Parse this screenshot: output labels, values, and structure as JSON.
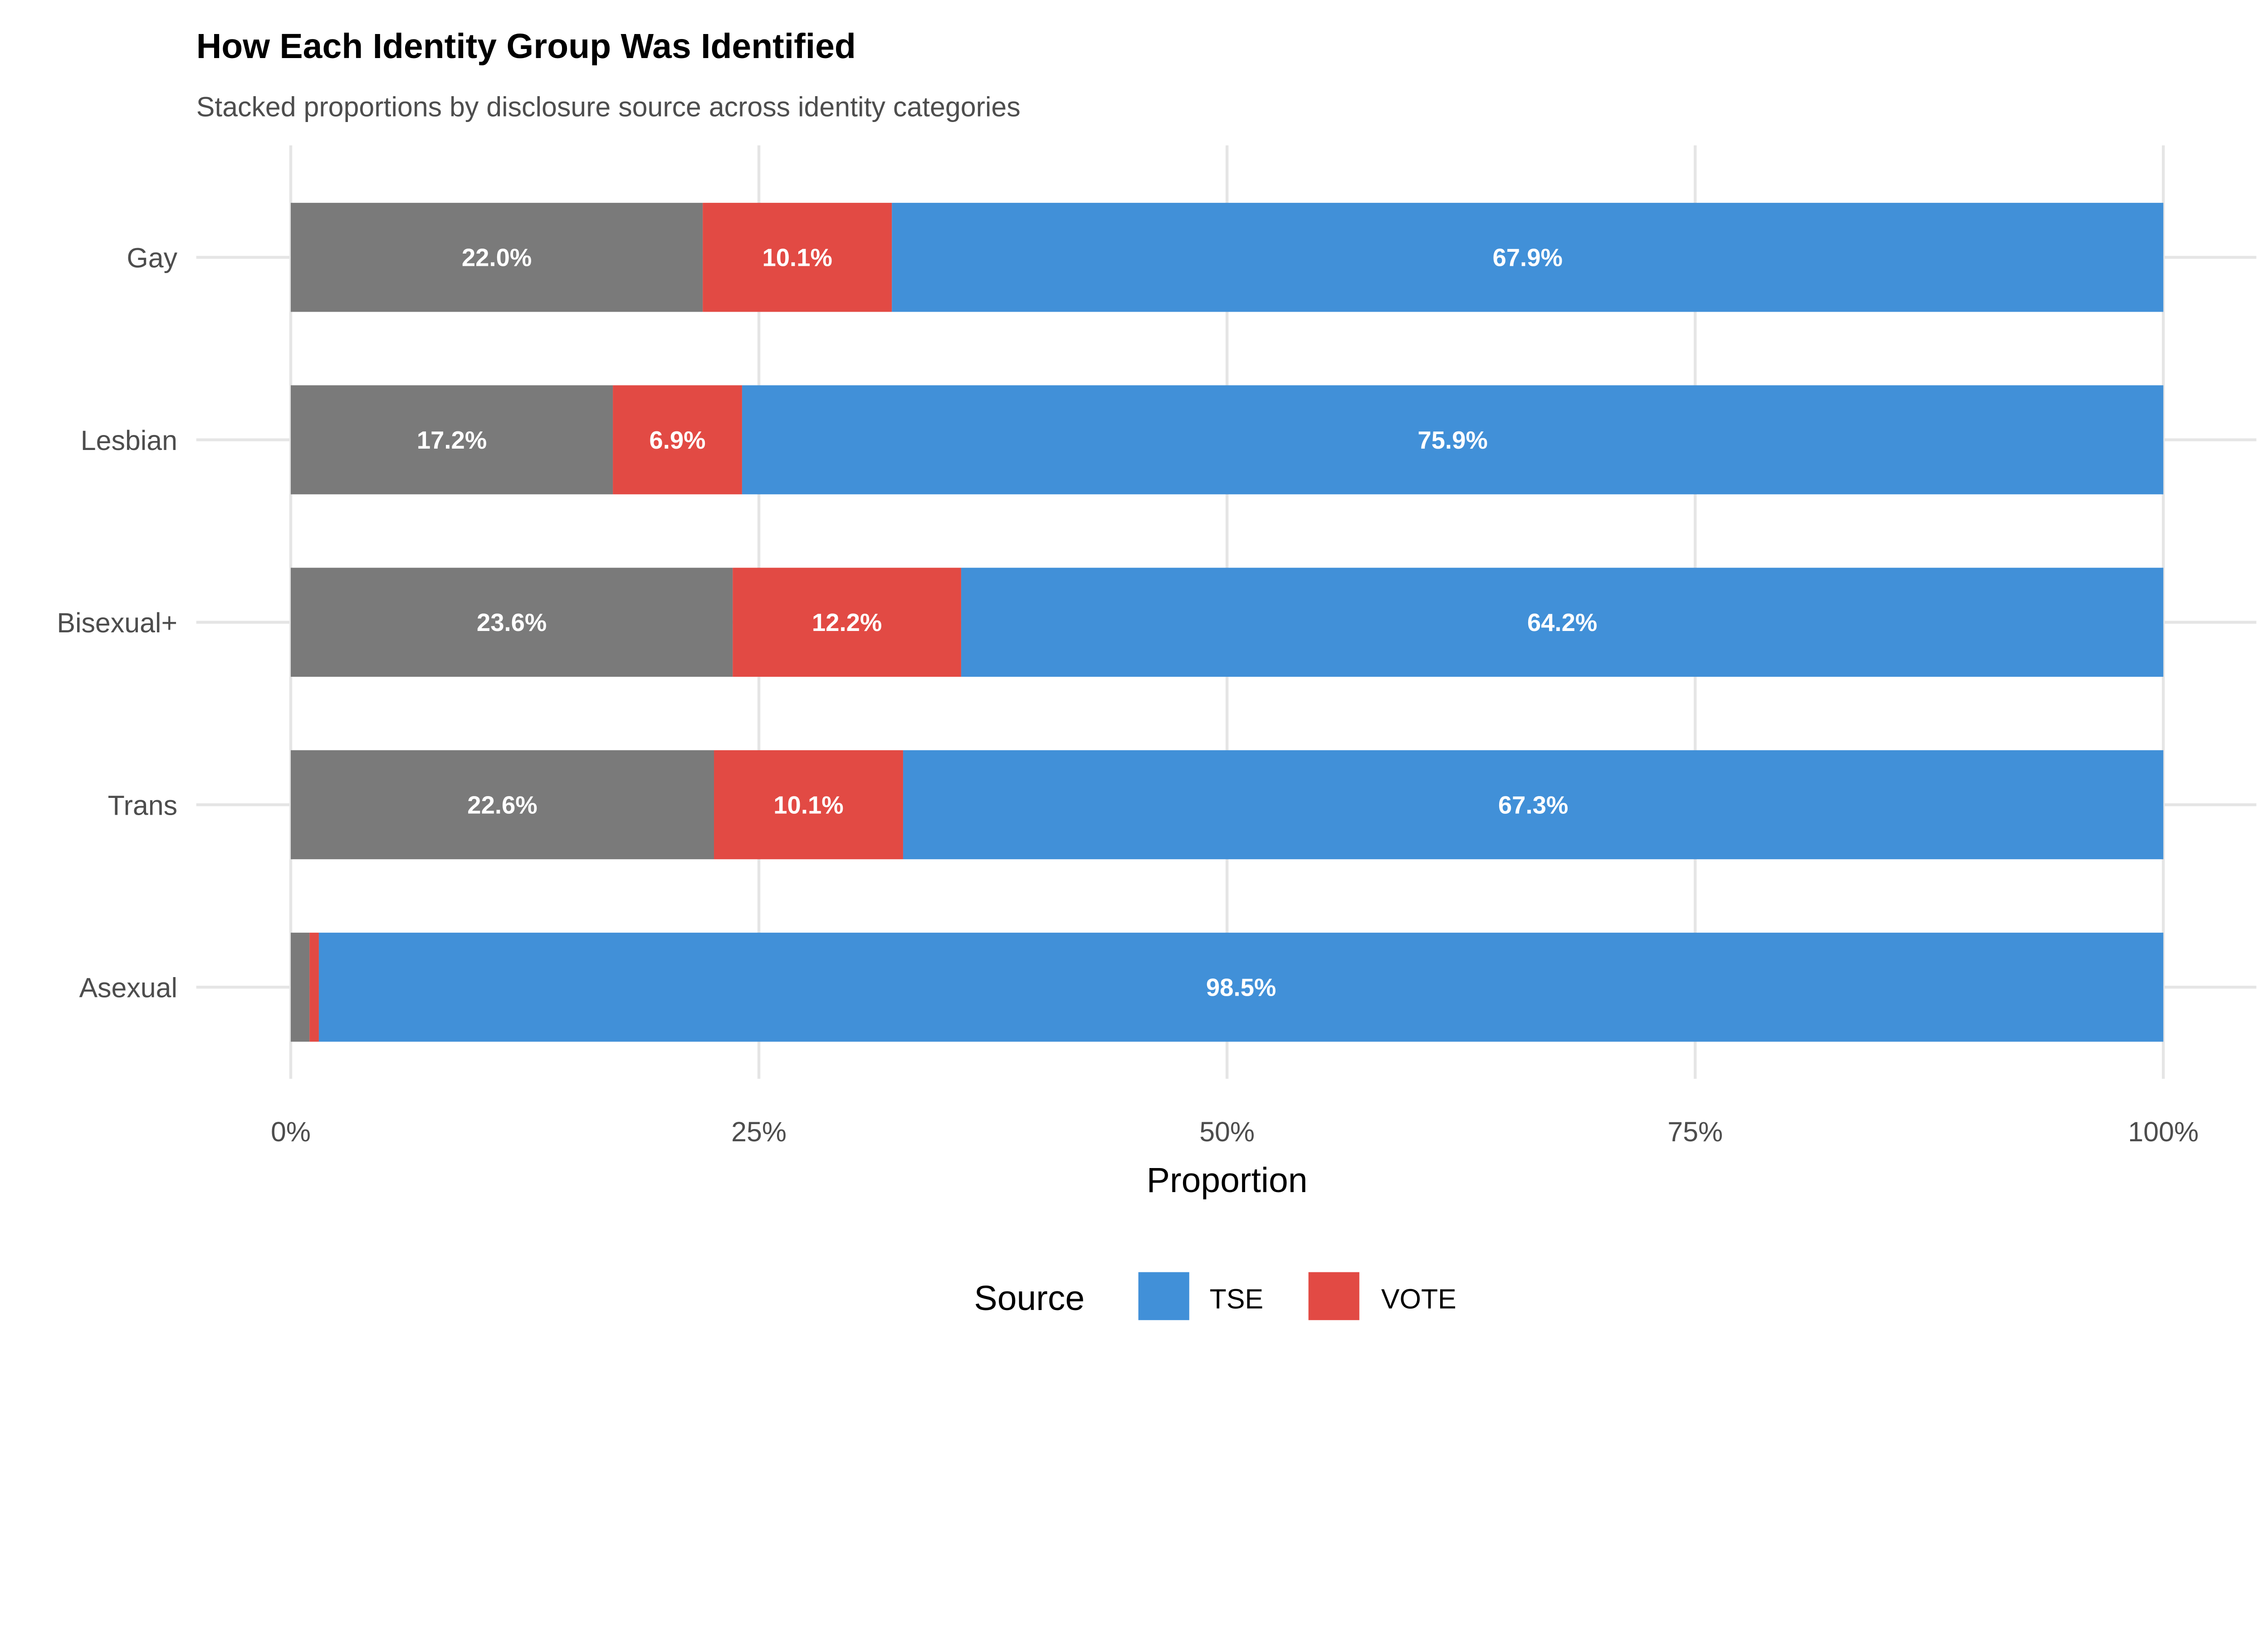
{
  "chart_data": {
    "type": "bar",
    "orientation": "horizontal",
    "stacked": true,
    "title": "How Each Identity Group Was Identified",
    "subtitle": "Stacked proportions by disclosure source across identity categories",
    "xlabel": "Proportion",
    "ylabel": "",
    "xlim": [
      0,
      100
    ],
    "x_ticks": [
      "0%",
      "25%",
      "50%",
      "75%",
      "100%"
    ],
    "x_tick_values": [
      0,
      25,
      50,
      75,
      100
    ],
    "grid": true,
    "categories": [
      "Gay",
      "Lesbian",
      "Bisexual+",
      "Trans",
      "Asexual"
    ],
    "series": [
      {
        "key": "other",
        "color": "#7a7a7a",
        "values": [
          22.0,
          17.2,
          23.6,
          22.6,
          1.0
        ],
        "labels": [
          "22.0%",
          "17.2%",
          "23.6%",
          "22.6%",
          ""
        ]
      },
      {
        "name": "VOTE",
        "color": "#e24a44",
        "values": [
          10.1,
          6.9,
          12.2,
          10.1,
          0.5
        ],
        "labels": [
          "10.1%",
          "6.9%",
          "12.2%",
          "10.1%",
          ""
        ]
      },
      {
        "name": "TSE",
        "color": "#4190d8",
        "values": [
          67.9,
          75.9,
          64.2,
          67.3,
          98.5
        ],
        "labels": [
          "67.9%",
          "75.9%",
          "64.2%",
          "67.3%",
          "98.5%"
        ]
      }
    ],
    "legend": {
      "title": "Source",
      "placement": "bottom",
      "entries": [
        {
          "label": "TSE",
          "color": "#4190d8"
        },
        {
          "label": "VOTE",
          "color": "#e24a44"
        }
      ]
    }
  }
}
